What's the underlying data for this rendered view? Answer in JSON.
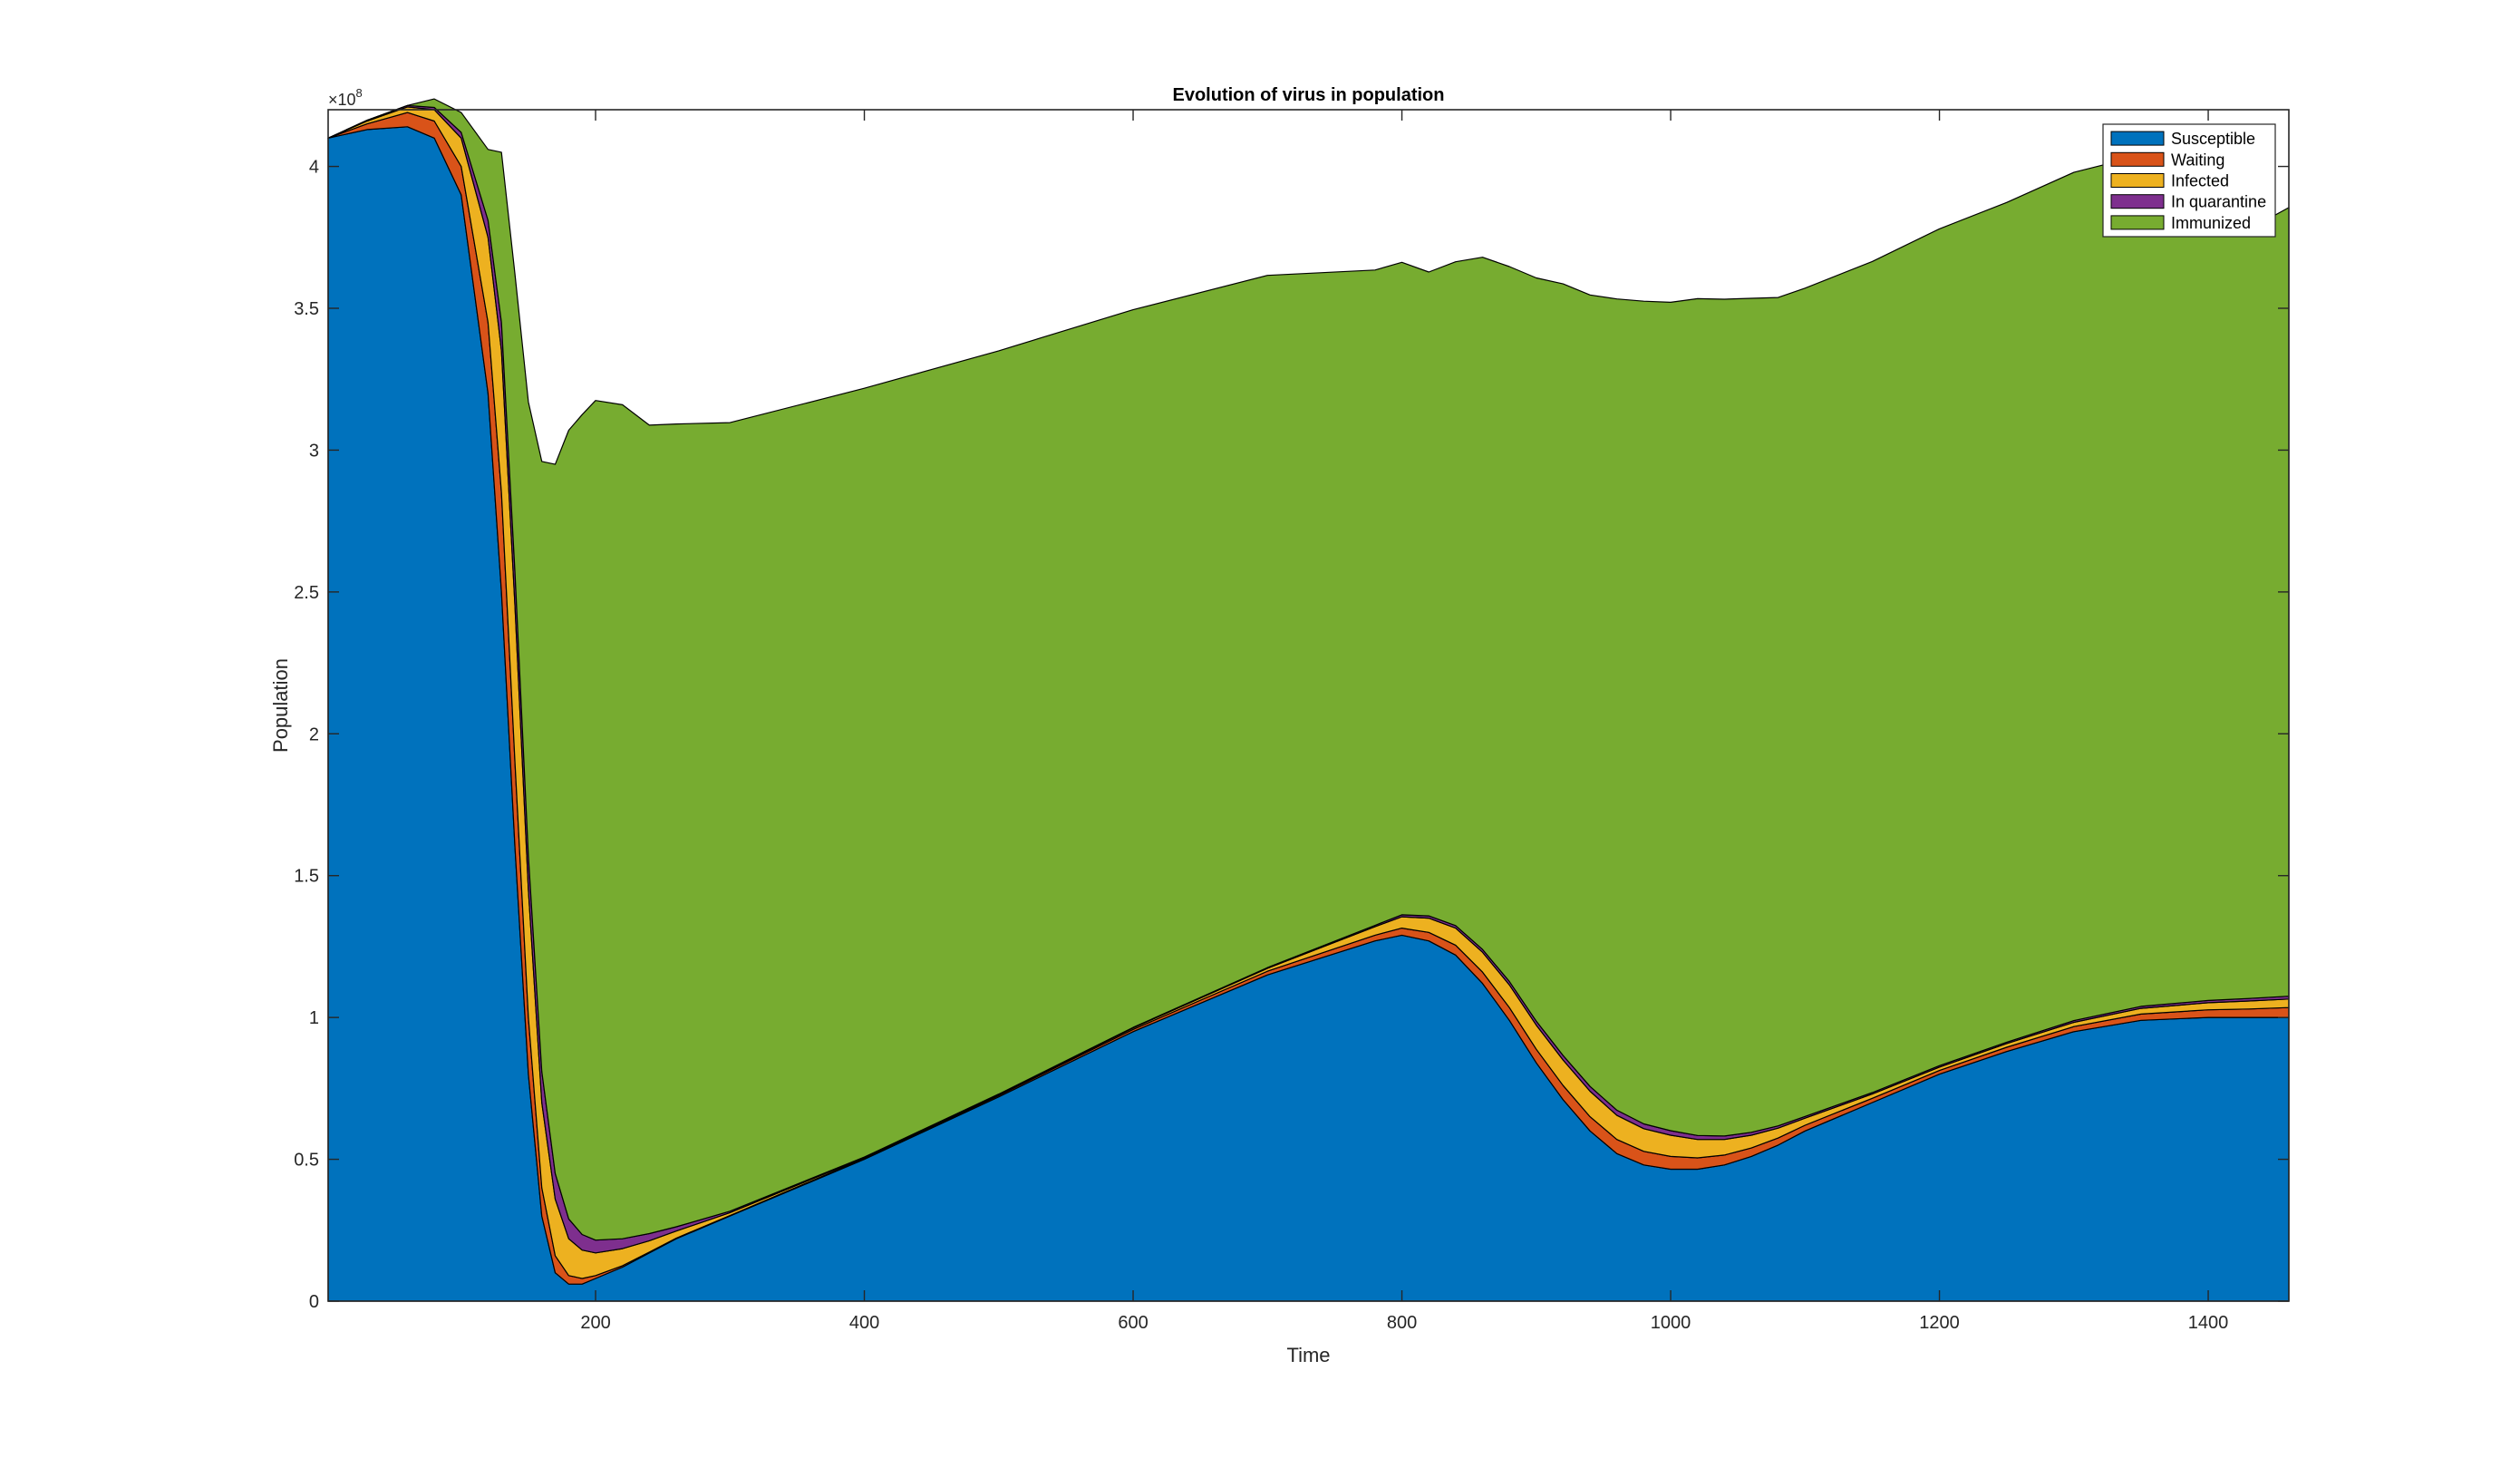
{
  "chart_data": {
    "type": "area",
    "stacked": true,
    "title": "Evolution of virus in population",
    "xlabel": "Time",
    "ylabel": "Population",
    "y_exponent_label": "×10",
    "y_exponent_power": "8",
    "xlim": [
      1,
      1460
    ],
    "ylim": [
      0,
      4.2
    ],
    "x_ticks": [
      200,
      400,
      600,
      800,
      1000,
      1200,
      1400
    ],
    "y_ticks": [
      0,
      0.5,
      1,
      1.5,
      2,
      2.5,
      3,
      3.5,
      4
    ],
    "y_tick_labels": [
      "0",
      "0.5",
      "1",
      "1.5",
      "2",
      "2.5",
      "3",
      "3.5",
      "4"
    ],
    "grid": false,
    "legend_position": "top-right",
    "x": [
      1,
      30,
      60,
      80,
      100,
      120,
      130,
      140,
      150,
      160,
      170,
      180,
      190,
      200,
      220,
      240,
      260,
      300,
      400,
      500,
      600,
      700,
      780,
      800,
      820,
      840,
      860,
      880,
      900,
      920,
      940,
      960,
      980,
      1000,
      1020,
      1040,
      1060,
      1080,
      1100,
      1150,
      1200,
      1250,
      1300,
      1350,
      1400,
      1430,
      1460
    ],
    "series": [
      {
        "name": "Susceptible",
        "color": "#0072bd",
        "values": [
          4.1,
          4.13,
          4.14,
          4.1,
          3.9,
          3.2,
          2.5,
          1.6,
          0.8,
          0.3,
          0.1,
          0.06,
          0.06,
          0.08,
          0.12,
          0.17,
          0.22,
          0.3,
          0.5,
          0.72,
          0.95,
          1.15,
          1.27,
          1.29,
          1.27,
          1.22,
          1.12,
          0.99,
          0.84,
          0.71,
          0.6,
          0.52,
          0.48,
          0.465,
          0.465,
          0.48,
          0.51,
          0.55,
          0.6,
          0.7,
          0.8,
          0.88,
          0.95,
          0.99,
          1.0,
          1.0,
          1.0
        ]
      },
      {
        "name": "Waiting",
        "color": "#d95319",
        "values": [
          0.0,
          0.02,
          0.05,
          0.06,
          0.1,
          0.25,
          0.35,
          0.3,
          0.2,
          0.1,
          0.06,
          0.03,
          0.02,
          0.01,
          0.005,
          0.003,
          0.002,
          0.002,
          0.003,
          0.005,
          0.008,
          0.013,
          0.02,
          0.025,
          0.03,
          0.035,
          0.04,
          0.045,
          0.048,
          0.05,
          0.05,
          0.05,
          0.048,
          0.045,
          0.04,
          0.035,
          0.03,
          0.025,
          0.02,
          0.015,
          0.013,
          0.015,
          0.018,
          0.022,
          0.027,
          0.03,
          0.035
        ]
      },
      {
        "name": "Infected",
        "color": "#edb120",
        "values": [
          0.0,
          0.01,
          0.02,
          0.04,
          0.1,
          0.3,
          0.5,
          0.55,
          0.45,
          0.3,
          0.2,
          0.13,
          0.1,
          0.08,
          0.06,
          0.04,
          0.025,
          0.01,
          0.003,
          0.003,
          0.005,
          0.01,
          0.03,
          0.04,
          0.05,
          0.06,
          0.07,
          0.08,
          0.085,
          0.09,
          0.09,
          0.085,
          0.08,
          0.075,
          0.065,
          0.055,
          0.045,
          0.035,
          0.025,
          0.015,
          0.012,
          0.013,
          0.015,
          0.02,
          0.025,
          0.028,
          0.03
        ]
      },
      {
        "name": "In quarantine",
        "color": "#7e2f8e",
        "values": [
          0.0,
          0.003,
          0.005,
          0.008,
          0.02,
          0.06,
          0.1,
          0.12,
          0.12,
          0.11,
          0.09,
          0.07,
          0.055,
          0.045,
          0.035,
          0.025,
          0.015,
          0.005,
          0.002,
          0.002,
          0.002,
          0.003,
          0.005,
          0.007,
          0.008,
          0.009,
          0.01,
          0.012,
          0.014,
          0.016,
          0.017,
          0.018,
          0.017,
          0.016,
          0.014,
          0.012,
          0.01,
          0.008,
          0.006,
          0.005,
          0.005,
          0.005,
          0.006,
          0.007,
          0.008,
          0.009,
          0.01
        ]
      },
      {
        "name": "Immunized",
        "color": "#77ac30",
        "values": [
          0.0,
          0.0,
          0.0,
          0.03,
          0.07,
          0.25,
          0.6,
          1.05,
          1.6,
          2.15,
          2.5,
          2.78,
          2.89,
          2.96,
          2.94,
          2.85,
          2.83,
          2.78,
          2.71,
          2.62,
          2.53,
          2.44,
          2.31,
          2.3,
          2.27,
          2.34,
          2.44,
          2.52,
          2.62,
          2.72,
          2.79,
          2.86,
          2.9,
          2.92,
          2.95,
          2.95,
          2.94,
          2.92,
          2.92,
          2.93,
          2.95,
          2.96,
          2.99,
          3.0,
          3.05,
          2.71,
          2.78
        ]
      }
    ]
  }
}
